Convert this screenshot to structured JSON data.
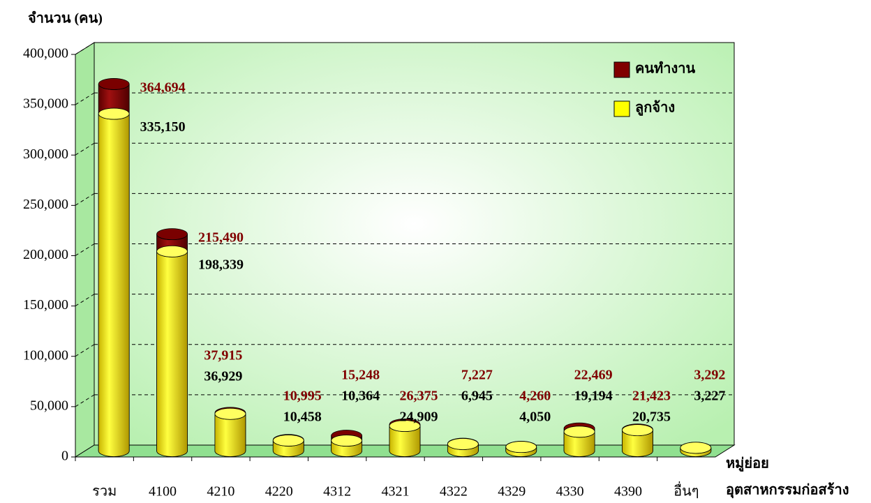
{
  "chart_data": {
    "type": "bar",
    "y_label": "จำนวน (คน)",
    "x_label": [
      "หมู่ย่อย",
      "อุตสาหกรรมก่อสร้าง"
    ],
    "categories": [
      "รวม",
      "4100",
      "4210",
      "4220",
      "4312",
      "4321",
      "4322",
      "4329",
      "4330",
      "4390",
      "อื่นๆ"
    ],
    "series": [
      {
        "name": "คนทำงาน",
        "color": "#800000",
        "values": [
          364694,
          215490,
          37915,
          10995,
          15248,
          26375,
          7227,
          4260,
          22469,
          21423,
          3292
        ],
        "value_labels": [
          "364,694",
          "215,490",
          "37,915",
          "10,995",
          "15,248",
          "26,375",
          "7,227",
          "4,260",
          "22,469",
          "21,423",
          "3,292"
        ]
      },
      {
        "name": "ลูกจ้าง",
        "color": "#ffff00",
        "values": [
          335150,
          198339,
          36929,
          10458,
          10364,
          24909,
          6945,
          4050,
          19194,
          20735,
          3227
        ],
        "value_labels": [
          "335,150",
          "198,339",
          "36,929",
          "10,458",
          "10,364",
          "24,909",
          "6,945",
          "4,050",
          "19,194",
          "20,735",
          "3,227"
        ]
      }
    ],
    "ylim": [
      0,
      400000
    ],
    "yticks": [
      0,
      {
        "value": 50000,
        "label": "50,000"
      },
      {
        "value": 100000,
        "label": "100,000"
      },
      {
        "value": 150000,
        "label": "150,000"
      },
      {
        "value": 200000,
        "label": "200,000"
      },
      {
        "value": 250000,
        "label": "250,000"
      },
      {
        "value": 300000,
        "label": "300,000"
      },
      {
        "value": 350000,
        "label": "350,000"
      },
      {
        "value": 400000,
        "label": "400,000"
      }
    ],
    "grid": true,
    "legend": "upper right"
  }
}
